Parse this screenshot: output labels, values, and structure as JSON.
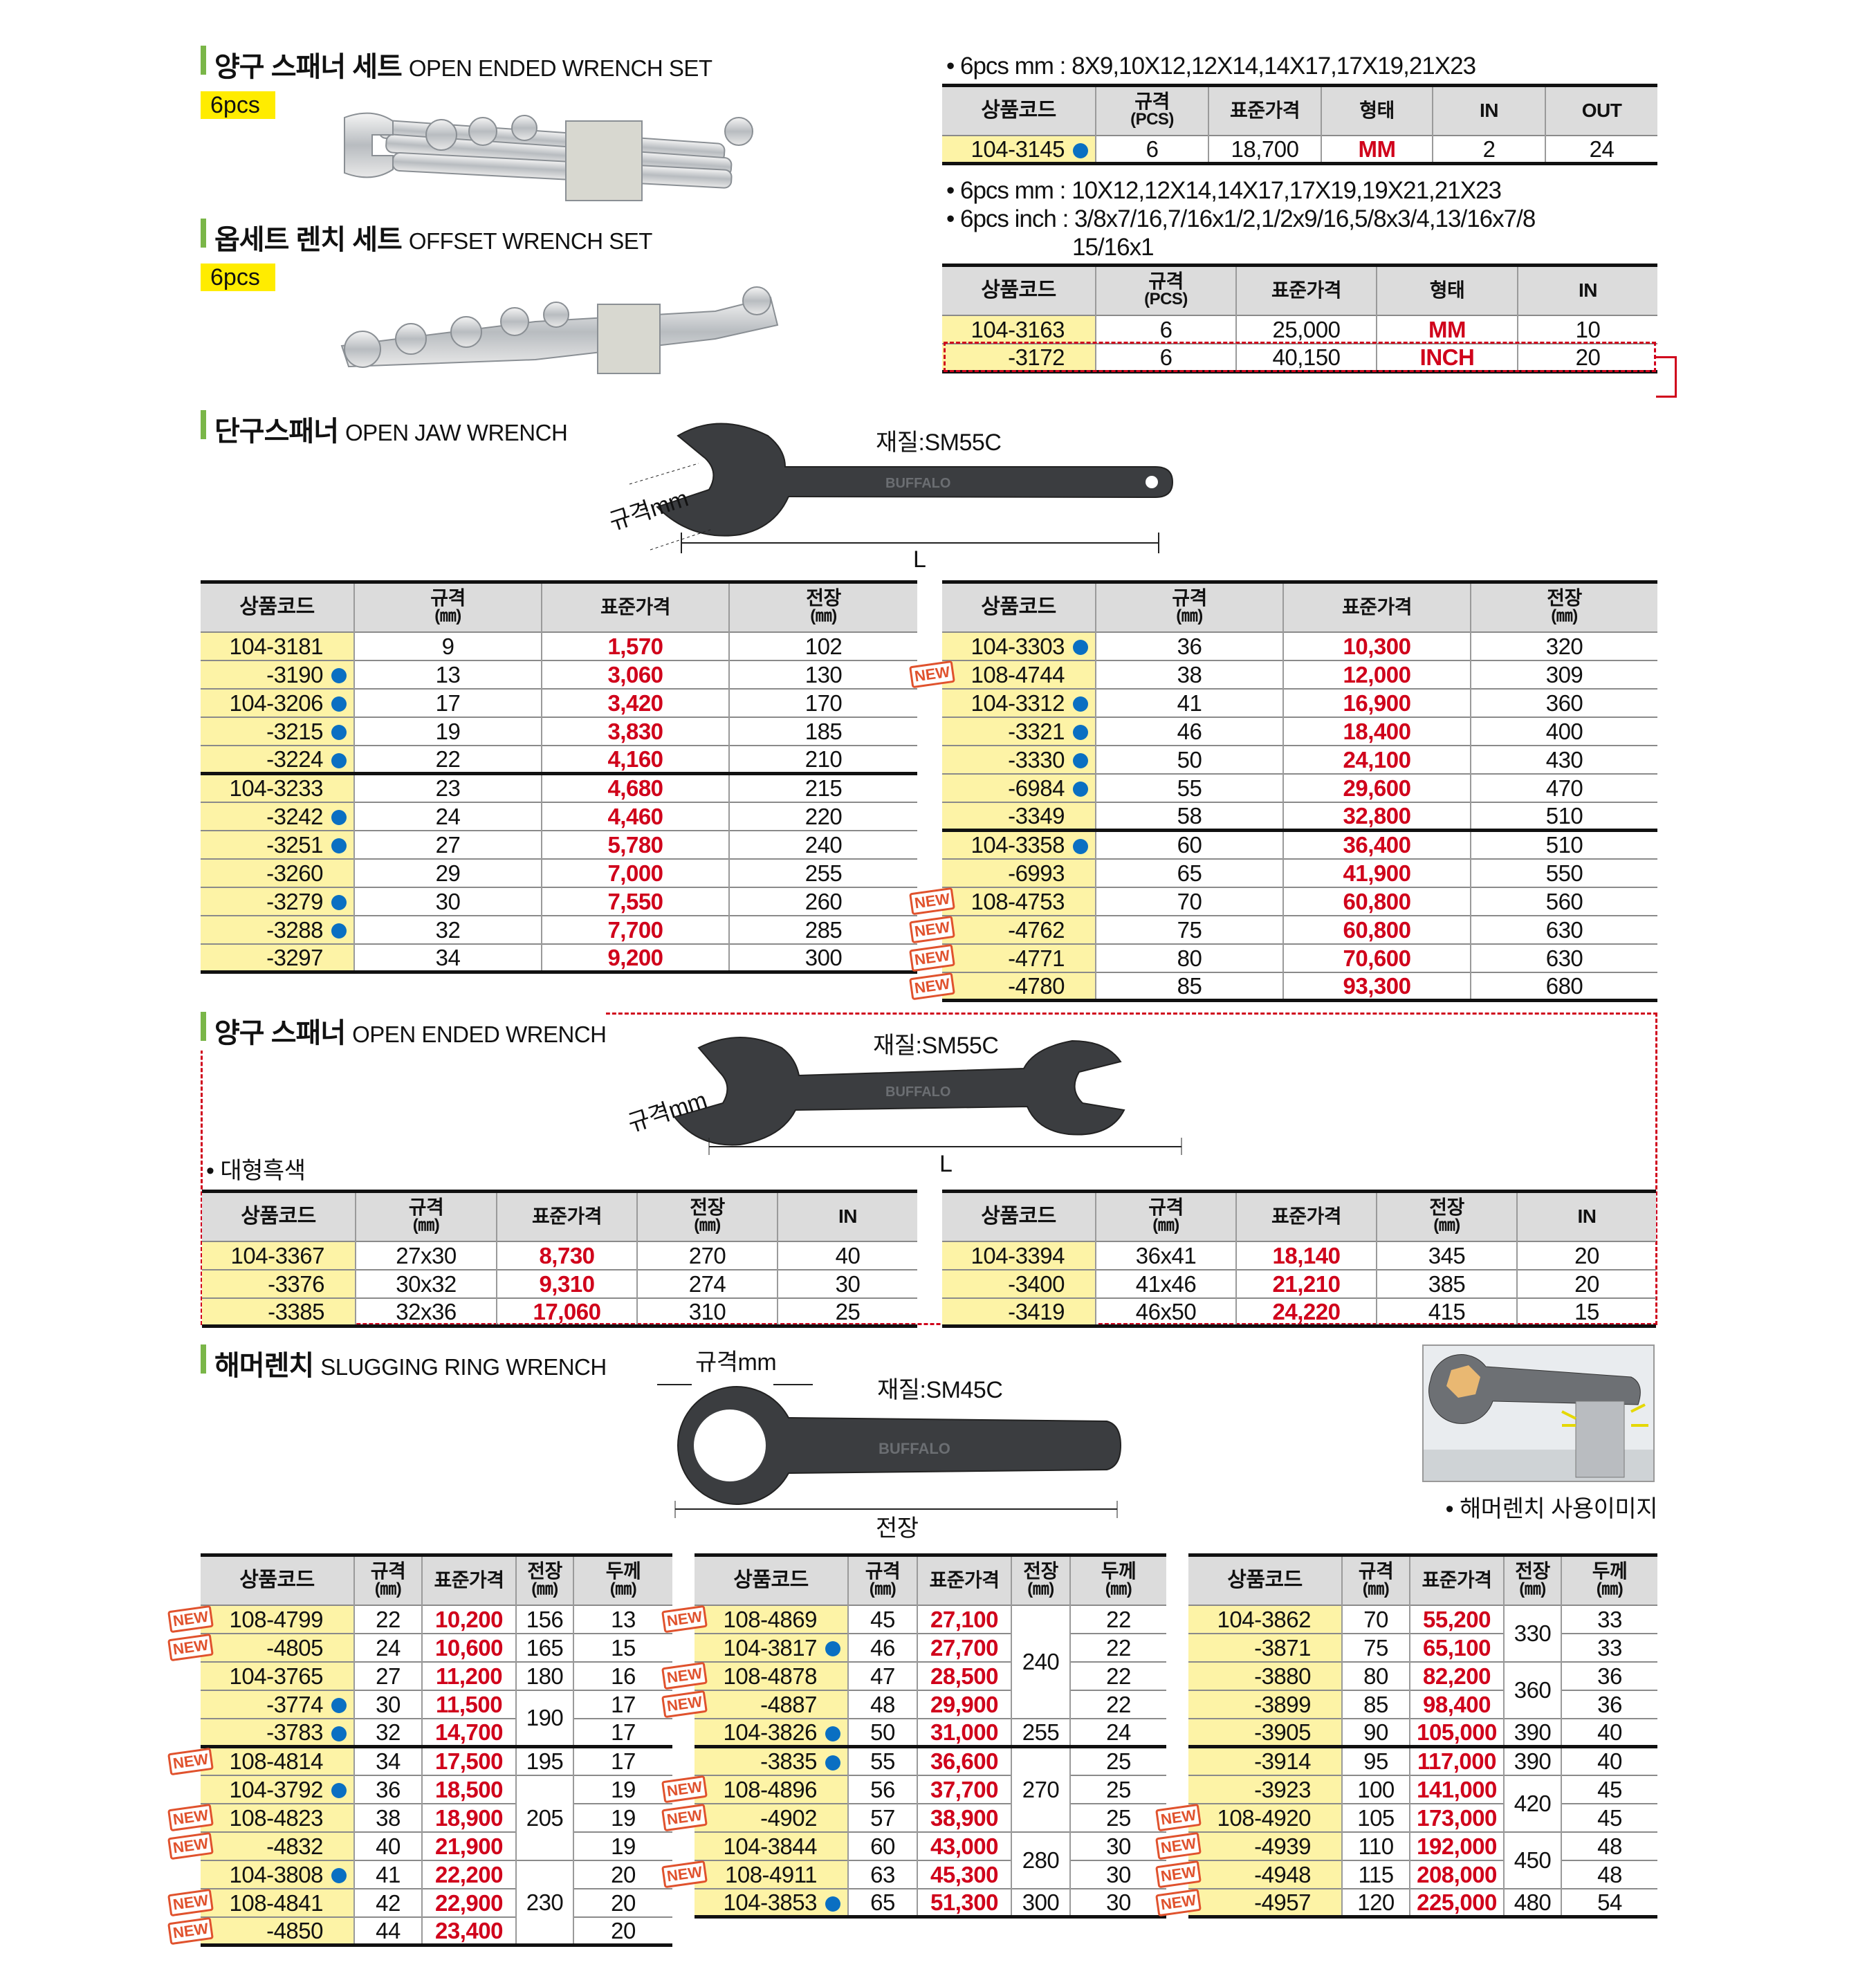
{
  "colors": {
    "accent_green": "#7ab648",
    "price_red": "#d0021b",
    "code_yellow": "#fdf3a6",
    "badge_yellow": "#ffec00",
    "dot_blue": "#0a6fc2",
    "new_stamp": "#e0522d"
  },
  "icons": {
    "dot": "blue-dot-icon",
    "new": "new-stamp-icon"
  },
  "sec1": {
    "title_ko": "양구 스패너 세트",
    "title_en": "OPEN ENDED WRENCH SET",
    "badge": "6pcs",
    "note": "• 6pcs mm : 8X9,10X12,12X14,14X17,17X19,21X23",
    "image_brand": "BUFFALO",
    "table": {
      "columns": [
        [
          "상품코드",
          ""
        ],
        [
          "규격",
          "(PCS)"
        ],
        [
          "표준가격",
          ""
        ],
        [
          "형태",
          ""
        ],
        [
          "IN",
          ""
        ],
        [
          "OUT",
          ""
        ]
      ],
      "price_col": 2,
      "rows": [
        {
          "code": "104-3145",
          "dot": true,
          "vals": [
            "6",
            "18,700",
            "MM",
            "2",
            "24"
          ]
        }
      ]
    }
  },
  "sec2": {
    "title_ko": "옵세트 렌치 세트",
    "title_en": "OFFSET WRENCH SET",
    "badge": "6pcs",
    "notes": [
      "• 6pcs mm : 10X12,12X14,14X17,17X19,19X21,21X23",
      "• 6pcs inch : 3/8x7/16,7/16x1/2,1/2x9/16,5/8x3/4,13/16x7/8",
      "15/16x1"
    ],
    "image_brand": "BUFFALO",
    "table": {
      "columns": [
        [
          "상품코드",
          ""
        ],
        [
          "규격",
          "(PCS)"
        ],
        [
          "표준가격",
          ""
        ],
        [
          "형태",
          ""
        ],
        [
          "IN",
          ""
        ]
      ],
      "price_col": 2,
      "rows": [
        {
          "code": "104-3163",
          "vals": [
            "6",
            "25,000",
            "MM",
            "10"
          ]
        },
        {
          "code": "-3172",
          "vals": [
            "6",
            "40,150",
            "INCH",
            "20"
          ]
        }
      ]
    }
  },
  "sec3": {
    "title_ko": "단구스패너",
    "title_en": "OPEN JAW WRENCH",
    "material": "재질:SM55C",
    "size_label": "규격mm",
    "length_label": "L",
    "image_brand": "BUFFALO",
    "image_size": "36",
    "tables": [
      {
        "columns": [
          [
            "상품코드",
            ""
          ],
          [
            "규격",
            "(㎜)"
          ],
          [
            "표준가격",
            ""
          ],
          [
            "전장",
            "(㎜)"
          ]
        ],
        "price_col": 1,
        "rows": [
          {
            "code": "104-3181",
            "vals": [
              "9",
              "1,570",
              "102"
            ]
          },
          {
            "code": "-3190",
            "dot": true,
            "vals": [
              "13",
              "3,060",
              "130"
            ]
          },
          {
            "code": "104-3206",
            "dot": true,
            "vals": [
              "17",
              "3,420",
              "170"
            ]
          },
          {
            "code": "-3215",
            "dot": true,
            "vals": [
              "19",
              "3,830",
              "185"
            ]
          },
          {
            "code": "-3224",
            "dot": true,
            "vals": [
              "22",
              "4,160",
              "210"
            ]
          },
          {
            "code": "104-3233",
            "sep": true,
            "vals": [
              "23",
              "4,680",
              "215"
            ]
          },
          {
            "code": "-3242",
            "dot": true,
            "vals": [
              "24",
              "4,460",
              "220"
            ]
          },
          {
            "code": "-3251",
            "dot": true,
            "vals": [
              "27",
              "5,780",
              "240"
            ]
          },
          {
            "code": "-3260",
            "vals": [
              "29",
              "7,000",
              "255"
            ]
          },
          {
            "code": "-3279",
            "dot": true,
            "vals": [
              "30",
              "7,550",
              "260"
            ]
          },
          {
            "code": "-3288",
            "dot": true,
            "vals": [
              "32",
              "7,700",
              "285"
            ]
          },
          {
            "code": "-3297",
            "vals": [
              "34",
              "9,200",
              "300"
            ]
          }
        ]
      },
      {
        "columns": [
          [
            "상품코드",
            ""
          ],
          [
            "규격",
            "(㎜)"
          ],
          [
            "표준가격",
            ""
          ],
          [
            "전장",
            "(㎜)"
          ]
        ],
        "price_col": 1,
        "rows": [
          {
            "code": "104-3303",
            "dot": true,
            "vals": [
              "36",
              "10,300",
              "320"
            ]
          },
          {
            "code": "108-4744",
            "new": true,
            "vals": [
              "38",
              "12,000",
              "309"
            ]
          },
          {
            "code": "104-3312",
            "dot": true,
            "vals": [
              "41",
              "16,900",
              "360"
            ]
          },
          {
            "code": "-3321",
            "dot": true,
            "vals": [
              "46",
              "18,400",
              "400"
            ]
          },
          {
            "code": "-3330",
            "dot": true,
            "vals": [
              "50",
              "24,100",
              "430"
            ]
          },
          {
            "code": "-6984",
            "dot": true,
            "vals": [
              "55",
              "29,600",
              "470"
            ]
          },
          {
            "code": "-3349",
            "vals": [
              "58",
              "32,800",
              "510"
            ]
          },
          {
            "code": "104-3358",
            "dot": true,
            "sep": true,
            "vals": [
              "60",
              "36,400",
              "510"
            ]
          },
          {
            "code": "-6993",
            "vals": [
              "65",
              "41,900",
              "550"
            ]
          },
          {
            "code": "108-4753",
            "new": true,
            "vals": [
              "70",
              "60,800",
              "560"
            ]
          },
          {
            "code": "-4762",
            "new": true,
            "vals": [
              "75",
              "60,800",
              "630"
            ]
          },
          {
            "code": "-4771",
            "new": true,
            "vals": [
              "80",
              "70,600",
              "630"
            ]
          },
          {
            "code": "-4780",
            "new": true,
            "vals": [
              "85",
              "93,300",
              "680"
            ]
          }
        ]
      }
    ]
  },
  "sec4": {
    "title_ko": "양구 스패너",
    "title_en": "OPEN ENDED WRENCH",
    "material": "재질:SM55C",
    "size_label": "규격mm",
    "length_label": "L",
    "note": "• 대형흑색",
    "image_brand": "BUFFALO",
    "image_size": "36",
    "image_size2": "41",
    "tables": [
      {
        "columns": [
          [
            "상품코드",
            ""
          ],
          [
            "규격",
            "(㎜)"
          ],
          [
            "표준가격",
            ""
          ],
          [
            "전장",
            "(㎜)"
          ],
          [
            "IN",
            ""
          ]
        ],
        "price_col": 1,
        "rows": [
          {
            "code": "104-3367",
            "vals": [
              "27x30",
              "8,730",
              "270",
              "40"
            ]
          },
          {
            "code": "-3376",
            "vals": [
              "30x32",
              "9,310",
              "274",
              "30"
            ]
          },
          {
            "code": "-3385",
            "vals": [
              "32x36",
              "17,060",
              "310",
              "25"
            ]
          }
        ]
      },
      {
        "columns": [
          [
            "상품코드",
            ""
          ],
          [
            "규격",
            "(㎜)"
          ],
          [
            "표준가격",
            ""
          ],
          [
            "전장",
            "(㎜)"
          ],
          [
            "IN",
            ""
          ]
        ],
        "price_col": 1,
        "rows": [
          {
            "code": "104-3394",
            "vals": [
              "36x41",
              "18,140",
              "345",
              "20"
            ]
          },
          {
            "code": "-3400",
            "vals": [
              "41x46",
              "21,210",
              "385",
              "20"
            ]
          },
          {
            "code": "-3419",
            "vals": [
              "46x50",
              "24,220",
              "415",
              "15"
            ]
          }
        ]
      }
    ]
  },
  "sec5": {
    "title_ko": "해머렌치",
    "title_en": "SLUGGING RING WRENCH",
    "material": "재질:SM45C",
    "size_label": "규격mm",
    "length_label": "전장",
    "usage_caption": "• 해머렌치 사용이미지",
    "image_brand": "BUFFALO",
    "image_size": "32",
    "tables": [
      {
        "columns": [
          [
            "상품코드",
            ""
          ],
          [
            "규격",
            "(㎜)"
          ],
          [
            "표준가격",
            ""
          ],
          [
            "전장",
            "(㎜)"
          ],
          [
            "두께",
            "(㎜)"
          ]
        ],
        "price_col": 1,
        "rows": [
          {
            "code": "108-4799",
            "new": true,
            "vals": [
              "22",
              "10,200",
              "156",
              "13"
            ]
          },
          {
            "code": "-4805",
            "new": true,
            "vals": [
              "24",
              "10,600",
              "165",
              "15"
            ]
          },
          {
            "code": "104-3765",
            "vals": [
              "27",
              "11,200",
              "180",
              "16"
            ]
          },
          {
            "code": "-3774",
            "dot": true,
            "vals": [
              "30",
              "11,500",
              "190",
              "17"
            ]
          },
          {
            "code": "-3783",
            "dot": true,
            "vals": [
              "32",
              "14,700",
              null,
              "17"
            ]
          },
          {
            "code": "108-4814",
            "new": true,
            "sep": true,
            "vals": [
              "34",
              "17,500",
              "195",
              "17"
            ]
          },
          {
            "code": "104-3792",
            "dot": true,
            "vals": [
              "36",
              "18,500",
              "205",
              "19"
            ]
          },
          {
            "code": "108-4823",
            "new": true,
            "vals": [
              "38",
              "18,900",
              null,
              "19"
            ]
          },
          {
            "code": "-4832",
            "new": true,
            "vals": [
              "40",
              "21,900",
              null,
              "19"
            ]
          },
          {
            "code": "104-3808",
            "dot": true,
            "vals": [
              "41",
              "22,200",
              "230",
              "20"
            ]
          },
          {
            "code": "108-4841",
            "new": true,
            "vals": [
              "42",
              "22,900",
              null,
              "20"
            ]
          },
          {
            "code": "-4850",
            "new": true,
            "vals": [
              "44",
              "23,400",
              null,
              "20"
            ]
          }
        ]
      },
      {
        "columns": [
          [
            "상품코드",
            ""
          ],
          [
            "규격",
            "(㎜)"
          ],
          [
            "표준가격",
            ""
          ],
          [
            "전장",
            "(㎜)"
          ],
          [
            "두께",
            "(㎜)"
          ]
        ],
        "price_col": 1,
        "rows": [
          {
            "code": "108-4869",
            "new": true,
            "vals": [
              "45",
              "27,100",
              "240",
              "22"
            ]
          },
          {
            "code": "104-3817",
            "dot": true,
            "vals": [
              "46",
              "27,700",
              null,
              "22"
            ]
          },
          {
            "code": "108-4878",
            "new": true,
            "vals": [
              "47",
              "28,500",
              null,
              "22"
            ]
          },
          {
            "code": "-4887",
            "new": true,
            "vals": [
              "48",
              "29,900",
              null,
              "22"
            ]
          },
          {
            "code": "104-3826",
            "dot": true,
            "vals": [
              "50",
              "31,000",
              "255",
              "24"
            ]
          },
          {
            "code": "-3835",
            "dot": true,
            "sep": true,
            "vals": [
              "55",
              "36,600",
              "270",
              "25"
            ]
          },
          {
            "code": "108-4896",
            "new": true,
            "vals": [
              "56",
              "37,700",
              null,
              "25"
            ]
          },
          {
            "code": "-4902",
            "new": true,
            "vals": [
              "57",
              "38,900",
              null,
              "25"
            ]
          },
          {
            "code": "104-3844",
            "vals": [
              "60",
              "43,000",
              "280",
              "30"
            ]
          },
          {
            "code": "108-4911",
            "new": true,
            "vals": [
              "63",
              "45,300",
              null,
              "30"
            ]
          },
          {
            "code": "104-3853",
            "dot": true,
            "vals": [
              "65",
              "51,300",
              "300",
              "30"
            ]
          }
        ]
      },
      {
        "columns": [
          [
            "상품코드",
            ""
          ],
          [
            "규격",
            "(㎜)"
          ],
          [
            "표준가격",
            ""
          ],
          [
            "전장",
            "(㎜)"
          ],
          [
            "두께",
            "(㎜)"
          ]
        ],
        "price_col": 1,
        "rows": [
          {
            "code": "104-3862",
            "vals": [
              "70",
              "55,200",
              "330",
              "33"
            ]
          },
          {
            "code": "-3871",
            "vals": [
              "75",
              "65,100",
              null,
              "33"
            ]
          },
          {
            "code": "-3880",
            "vals": [
              "80",
              "82,200",
              "360",
              "36"
            ]
          },
          {
            "code": "-3899",
            "vals": [
              "85",
              "98,400",
              null,
              "36"
            ]
          },
          {
            "code": "-3905",
            "vals": [
              "90",
              "105,000",
              "390",
              "40"
            ]
          },
          {
            "code": "-3914",
            "sep": true,
            "vals": [
              "95",
              "117,000",
              "390",
              "40"
            ]
          },
          {
            "code": "-3923",
            "vals": [
              "100",
              "141,000",
              "420",
              "45"
            ]
          },
          {
            "code": "108-4920",
            "new": true,
            "vals": [
              "105",
              "173,000",
              null,
              "45"
            ]
          },
          {
            "code": "-4939",
            "new": true,
            "vals": [
              "110",
              "192,000",
              "450",
              "48"
            ]
          },
          {
            "code": "-4948",
            "new": true,
            "vals": [
              "115",
              "208,000",
              null,
              "48"
            ]
          },
          {
            "code": "-4957",
            "new": true,
            "vals": [
              "120",
              "225,000",
              "480",
              "54"
            ]
          }
        ]
      }
    ]
  }
}
